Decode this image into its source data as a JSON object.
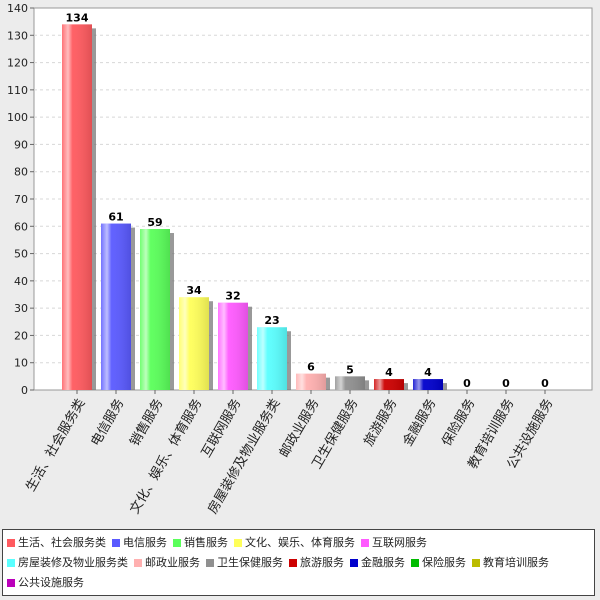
{
  "chart_data": {
    "type": "bar",
    "categories": [
      "生活、社会服务类",
      "电信服务",
      "销售服务",
      "文化、娱乐、体育服务",
      "互联网服务",
      "房屋装修及物业服务类",
      "邮政业服务",
      "卫生保健服务",
      "旅游服务",
      "金融服务",
      "保险服务",
      "教育培训服务",
      "公共设施服务"
    ],
    "values": [
      134,
      61,
      59,
      34,
      32,
      23,
      6,
      5,
      4,
      4,
      0,
      0,
      0
    ],
    "colors": [
      "#ff5a5f",
      "#5a5aff",
      "#5aff5a",
      "#ffff5a",
      "#ff5aff",
      "#5affff",
      "#ffb0b0",
      "#909090",
      "#cc0000",
      "#0000cc",
      "#00bb00",
      "#bbbb00",
      "#bb00bb"
    ],
    "ylim": [
      0,
      140
    ],
    "yticks": [
      0,
      10,
      20,
      30,
      40,
      50,
      60,
      70,
      80,
      90,
      100,
      110,
      120,
      130,
      140
    ],
    "grid": true,
    "legend_position": "bottom",
    "title": "",
    "xlabel": "",
    "ylabel": ""
  }
}
